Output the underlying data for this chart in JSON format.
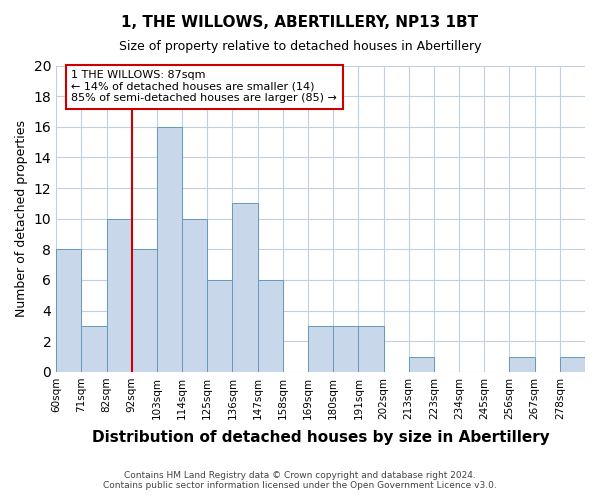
{
  "title": "1, THE WILLOWS, ABERTILLERY, NP13 1BT",
  "subtitle": "Size of property relative to detached houses in Abertillery",
  "xlabel": "Distribution of detached houses by size in Abertillery",
  "ylabel": "Number of detached properties",
  "bar_labels": [
    "60sqm",
    "71sqm",
    "82sqm",
    "92sqm",
    "103sqm",
    "114sqm",
    "125sqm",
    "136sqm",
    "147sqm",
    "158sqm",
    "169sqm",
    "180sqm",
    "191sqm",
    "202sqm",
    "213sqm",
    "223sqm",
    "234sqm",
    "245sqm",
    "256sqm",
    "267sqm",
    "278sqm"
  ],
  "bar_values": [
    8,
    3,
    10,
    8,
    16,
    10,
    6,
    11,
    6,
    0,
    3,
    3,
    3,
    0,
    1,
    0,
    0,
    0,
    1,
    0,
    1
  ],
  "bar_color": "#c8d8ea",
  "bar_edge_color": "#6699bb",
  "ylim": [
    0,
    20
  ],
  "yticks": [
    0,
    2,
    4,
    6,
    8,
    10,
    12,
    14,
    16,
    18,
    20
  ],
  "property_line_color": "#cc0000",
  "annotation_title": "1 THE WILLOWS: 87sqm",
  "annotation_line1": "← 14% of detached houses are smaller (14)",
  "annotation_line2": "85% of semi-detached houses are larger (85) →",
  "annotation_box_color": "#ffffff",
  "annotation_box_edge_color": "#cc0000",
  "footer_line1": "Contains HM Land Registry data © Crown copyright and database right 2024.",
  "footer_line2": "Contains public sector information licensed under the Open Government Licence v3.0.",
  "background_color": "#ffffff",
  "grid_color": "#c0d0e0"
}
